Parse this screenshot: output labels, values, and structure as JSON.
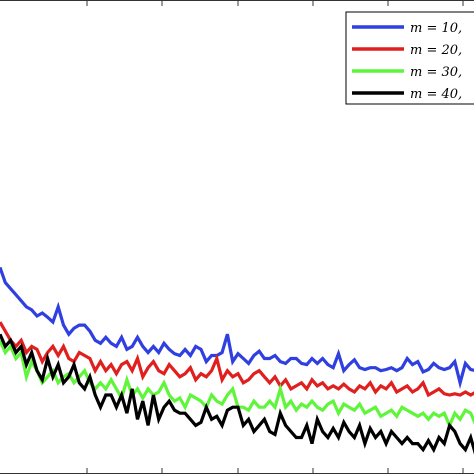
{
  "chart_data": {
    "type": "line",
    "grid": false,
    "legend_position": "top-right",
    "series": [
      {
        "name": "m = 10,",
        "color": "#2f3fe0",
        "values": [
          0.56,
          0.535,
          0.525,
          0.515,
          0.505,
          0.495,
          0.49,
          0.48,
          0.485,
          0.478,
          0.47,
          0.495,
          0.465,
          0.45,
          0.46,
          0.465,
          0.465,
          0.455,
          0.44,
          0.435,
          0.445,
          0.435,
          0.43,
          0.445,
          0.425,
          0.43,
          0.445,
          0.43,
          0.42,
          0.43,
          0.42,
          0.435,
          0.425,
          0.418,
          0.415,
          0.425,
          0.415,
          0.43,
          0.425,
          0.405,
          0.415,
          0.415,
          0.42,
          0.45,
          0.405,
          0.418,
          0.41,
          0.402,
          0.415,
          0.422,
          0.41,
          0.41,
          0.415,
          0.405,
          0.402,
          0.41,
          0.41,
          0.402,
          0.4,
          0.41,
          0.402,
          0.41,
          0.4,
          0.395,
          0.418,
          0.39,
          0.4,
          0.408,
          0.395,
          0.392,
          0.395,
          0.395,
          0.39,
          0.392,
          0.395,
          0.39,
          0.395,
          0.41,
          0.4,
          0.405,
          0.388,
          0.392,
          0.402,
          0.395,
          0.392,
          0.395,
          0.405,
          0.37,
          0.402,
          0.392,
          0.39
        ]
      },
      {
        "name": "m = 20,",
        "color": "#e01f1f",
        "values": [
          0.47,
          0.455,
          0.44,
          0.43,
          0.44,
          0.42,
          0.43,
          0.425,
          0.405,
          0.42,
          0.43,
          0.415,
          0.43,
          0.41,
          0.405,
          0.42,
          0.415,
          0.41,
          0.39,
          0.405,
          0.39,
          0.4,
          0.385,
          0.4,
          0.405,
          0.39,
          0.41,
          0.38,
          0.395,
          0.405,
          0.39,
          0.385,
          0.4,
          0.39,
          0.38,
          0.385,
          0.395,
          0.375,
          0.385,
          0.38,
          0.39,
          0.41,
          0.375,
          0.39,
          0.38,
          0.385,
          0.37,
          0.375,
          0.385,
          0.39,
          0.38,
          0.37,
          0.38,
          0.365,
          0.375,
          0.36,
          0.365,
          0.37,
          0.36,
          0.375,
          0.365,
          0.37,
          0.36,
          0.365,
          0.36,
          0.368,
          0.36,
          0.355,
          0.365,
          0.36,
          0.37,
          0.355,
          0.365,
          0.36,
          0.37,
          0.355,
          0.36,
          0.365,
          0.355,
          0.36,
          0.37,
          0.35,
          0.355,
          0.36,
          0.352,
          0.35,
          0.352,
          0.35,
          0.355,
          0.35,
          0.355
        ]
      },
      {
        "name": "m = 30,",
        "color": "#5ff53a",
        "values": [
          0.44,
          0.42,
          0.43,
          0.41,
          0.42,
          0.38,
          0.405,
          0.39,
          0.37,
          0.38,
          0.39,
          0.37,
          0.38,
          0.385,
          0.37,
          0.38,
          0.39,
          0.37,
          0.36,
          0.37,
          0.36,
          0.375,
          0.36,
          0.345,
          0.375,
          0.35,
          0.36,
          0.345,
          0.36,
          0.35,
          0.355,
          0.37,
          0.35,
          0.34,
          0.345,
          0.33,
          0.35,
          0.345,
          0.34,
          0.33,
          0.35,
          0.34,
          0.335,
          0.35,
          0.36,
          0.33,
          0.33,
          0.325,
          0.34,
          0.33,
          0.33,
          0.34,
          0.33,
          0.36,
          0.33,
          0.34,
          0.325,
          0.335,
          0.33,
          0.34,
          0.33,
          0.325,
          0.335,
          0.34,
          0.32,
          0.335,
          0.33,
          0.325,
          0.335,
          0.32,
          0.325,
          0.33,
          0.315,
          0.32,
          0.325,
          0.315,
          0.33,
          0.325,
          0.32,
          0.315,
          0.32,
          0.31,
          0.32,
          0.315,
          0.32,
          0.3,
          0.32,
          0.31,
          0.325,
          0.32,
          0.3
        ]
      },
      {
        "name": "m = 40,",
        "color": "#000000",
        "values": [
          0.45,
          0.43,
          0.44,
          0.42,
          0.43,
          0.4,
          0.42,
          0.39,
          0.375,
          0.41,
          0.38,
          0.4,
          0.37,
          0.38,
          0.4,
          0.37,
          0.36,
          0.38,
          0.35,
          0.33,
          0.35,
          0.35,
          0.33,
          0.35,
          0.32,
          0.36,
          0.31,
          0.34,
          0.3,
          0.35,
          0.31,
          0.33,
          0.34,
          0.325,
          0.32,
          0.32,
          0.31,
          0.3,
          0.305,
          0.33,
          0.31,
          0.315,
          0.3,
          0.325,
          0.33,
          0.33,
          0.3,
          0.31,
          0.29,
          0.3,
          0.31,
          0.29,
          0.285,
          0.32,
          0.3,
          0.29,
          0.28,
          0.28,
          0.3,
          0.27,
          0.31,
          0.29,
          0.28,
          0.295,
          0.28,
          0.305,
          0.29,
          0.28,
          0.3,
          0.27,
          0.295,
          0.28,
          0.29,
          0.27,
          0.29,
          0.28,
          0.27,
          0.28,
          0.27,
          0.27,
          0.26,
          0.275,
          0.26,
          0.28,
          0.27,
          0.3,
          0.29,
          0.27,
          0.26,
          0.28,
          0.25
        ]
      }
    ]
  }
}
